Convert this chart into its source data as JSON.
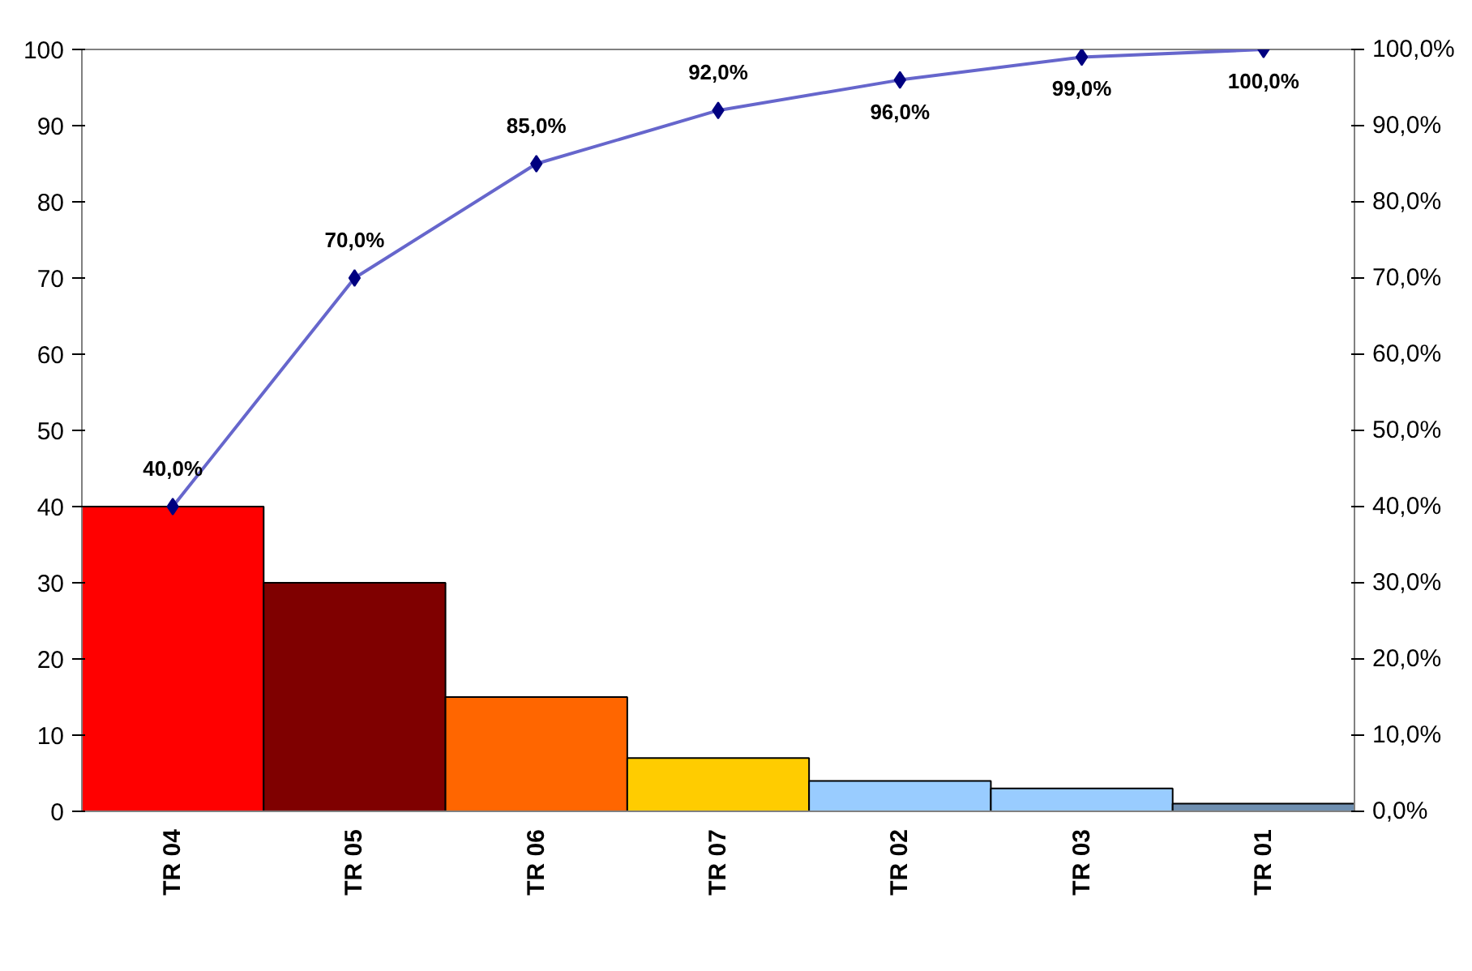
{
  "chart_data": {
    "type": "bar",
    "categories": [
      "TR 04",
      "TR 05",
      "TR 06",
      "TR 07",
      "TR 02",
      "TR 03",
      "TR 01"
    ],
    "ylim": [
      0,
      100
    ],
    "yticks": [
      0,
      10,
      20,
      30,
      40,
      50,
      60,
      70,
      80,
      90,
      100
    ],
    "y2lim": [
      0,
      100
    ],
    "y2ticks": [
      {
        "value": 0,
        "label": "0,0%"
      },
      {
        "value": 10,
        "label": "10,0%"
      },
      {
        "value": 20,
        "label": "20,0%"
      },
      {
        "value": 30,
        "label": "30,0%"
      },
      {
        "value": 40,
        "label": "40,0%"
      },
      {
        "value": 50,
        "label": "50,0%"
      },
      {
        "value": 60,
        "label": "60,0%"
      },
      {
        "value": 70,
        "label": "70,0%"
      },
      {
        "value": 80,
        "label": "80,0%"
      },
      {
        "value": 90,
        "label": "90,0%"
      },
      {
        "value": 100,
        "label": "100,0%"
      }
    ],
    "grid": false,
    "series": [
      {
        "colors": [
          "#ff0000",
          "#7f0000",
          "#ff6600",
          "#ffcc00",
          "#99ccff",
          "#99ccff",
          "#6f8fb0"
        ],
        "values": [
          40,
          30,
          15,
          7,
          4,
          3,
          1
        ]
      },
      {
        "type": "line",
        "axis": "y2",
        "color": "#6666cc",
        "marker": "diamond",
        "values": [
          40,
          70,
          85,
          92,
          96,
          99,
          100
        ],
        "value_labels": [
          "40,0%",
          "70,0%",
          "85,0%",
          "92,0%",
          "96,0%",
          "99,0%",
          "100,0%"
        ]
      }
    ]
  }
}
